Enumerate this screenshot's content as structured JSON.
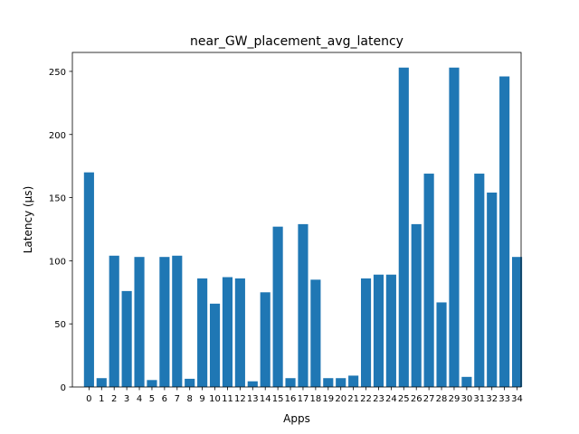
{
  "chart_data": {
    "type": "bar",
    "title": "near_GW_placement_avg_latency",
    "xlabel": "Apps",
    "ylabel": "Latency (µs)",
    "ylim": [
      0,
      265
    ],
    "yticks": [
      0,
      50,
      100,
      150,
      200,
      250
    ],
    "grid": false,
    "bar_color": "#1f77b4",
    "categories": [
      "0",
      "1",
      "2",
      "3",
      "4",
      "5",
      "6",
      "7",
      "8",
      "9",
      "10",
      "11",
      "12",
      "13",
      "14",
      "15",
      "16",
      "17",
      "18",
      "19",
      "20",
      "21",
      "22",
      "23",
      "24",
      "25",
      "26",
      "27",
      "28",
      "29",
      "30",
      "31",
      "32",
      "33",
      "34"
    ],
    "values": [
      170,
      7,
      104,
      76,
      103,
      5.5,
      103,
      104,
      6.5,
      86,
      66,
      87,
      86,
      4.5,
      75,
      127,
      7,
      129,
      85,
      7,
      7,
      9,
      86,
      89,
      89,
      253,
      129,
      169,
      67,
      253,
      8,
      169,
      154,
      246,
      103
    ]
  }
}
